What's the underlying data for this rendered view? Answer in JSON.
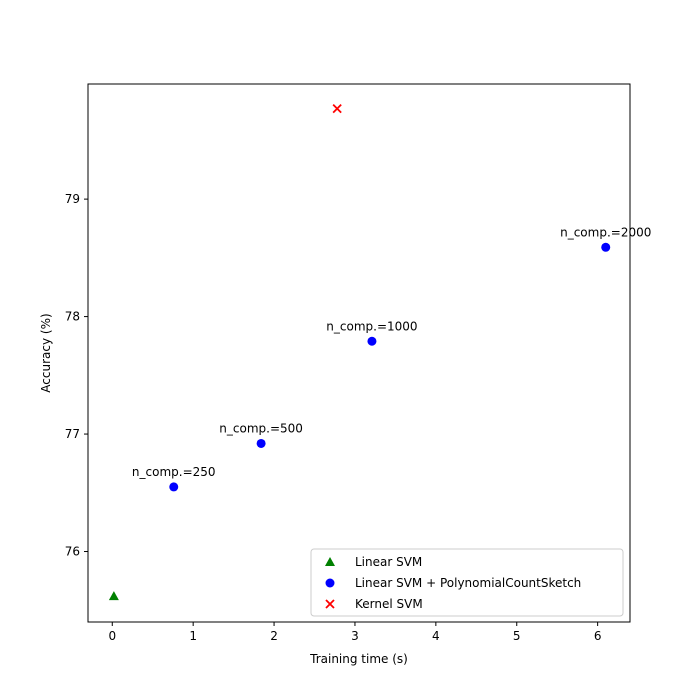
{
  "chart_data": {
    "type": "scatter",
    "title": "",
    "xlabel": "Training time (s)",
    "ylabel": "Accuracy (%)",
    "xlim": [
      -0.3,
      6.4
    ],
    "ylim": [
      75.4,
      79.98
    ],
    "xticks": [
      0,
      1,
      2,
      3,
      4,
      5,
      6
    ],
    "yticks": [
      76,
      77,
      78,
      79
    ],
    "grid": false,
    "legend_position": "lower-right",
    "series": [
      {
        "name": "Linear SVM",
        "marker": "triangle",
        "color": "#008000",
        "points": [
          {
            "x": 0.02,
            "y": 75.62
          }
        ]
      },
      {
        "name": "Linear SVM + PolynomialCountSketch",
        "marker": "circle",
        "color": "#0000ff",
        "points": [
          {
            "x": 0.76,
            "y": 76.55,
            "label": "n_comp.=250"
          },
          {
            "x": 1.84,
            "y": 76.92,
            "label": "n_comp.=500"
          },
          {
            "x": 3.21,
            "y": 77.79,
            "label": "n_comp.=1000"
          },
          {
            "x": 6.1,
            "y": 78.59,
            "label": "n_comp.=2000"
          }
        ]
      },
      {
        "name": "Kernel SVM",
        "marker": "x",
        "color": "#ff0000",
        "points": [
          {
            "x": 2.78,
            "y": 79.77
          }
        ]
      }
    ]
  }
}
